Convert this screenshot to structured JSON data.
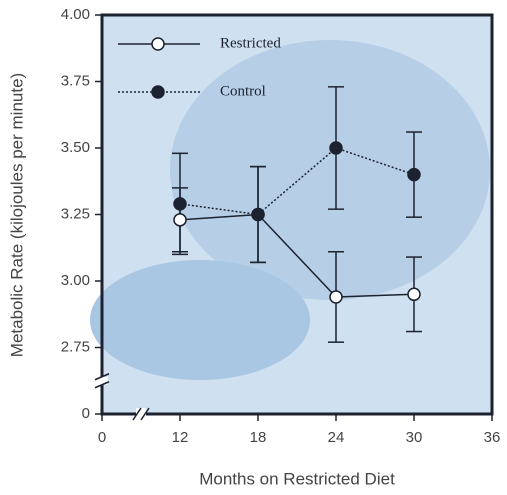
{
  "chart_data": {
    "type": "line",
    "y_label": "Metabolic Rate (kilojoules per minute)",
    "x_label": "Months on Restricted Diet",
    "x": [
      12,
      18,
      24,
      30
    ],
    "series": [
      {
        "name": "Restricted",
        "color": "#1c2230",
        "marker": "open",
        "linestyle": "solid",
        "values": [
          3.23,
          3.25,
          2.94,
          2.95
        ],
        "errors": [
          0.12,
          0.18,
          0.17,
          0.14
        ]
      },
      {
        "name": "Control",
        "color": "#1c2230",
        "marker": "filled",
        "linestyle": "dotted",
        "values": [
          3.29,
          3.25,
          3.5,
          3.4
        ],
        "errors": [
          0.19,
          0.18,
          0.23,
          0.16
        ]
      }
    ],
    "xlim": [
      0,
      36
    ],
    "xticks": [
      0,
      12,
      18,
      24,
      30,
      36
    ],
    "x_axis_break": true,
    "ylim": [
      0,
      4
    ],
    "yticks": [
      0,
      {
        "value": 2.75,
        "label": "2.75"
      },
      {
        "value": 3,
        "label": "3.00"
      },
      {
        "value": 3.25,
        "label": "3.25"
      },
      {
        "value": 3.5,
        "label": "3.50"
      },
      {
        "value": 3.75,
        "label": "3.75"
      },
      {
        "value": 4,
        "label": "4.00"
      }
    ],
    "y_axis_break": true,
    "legend": "upper left"
  }
}
